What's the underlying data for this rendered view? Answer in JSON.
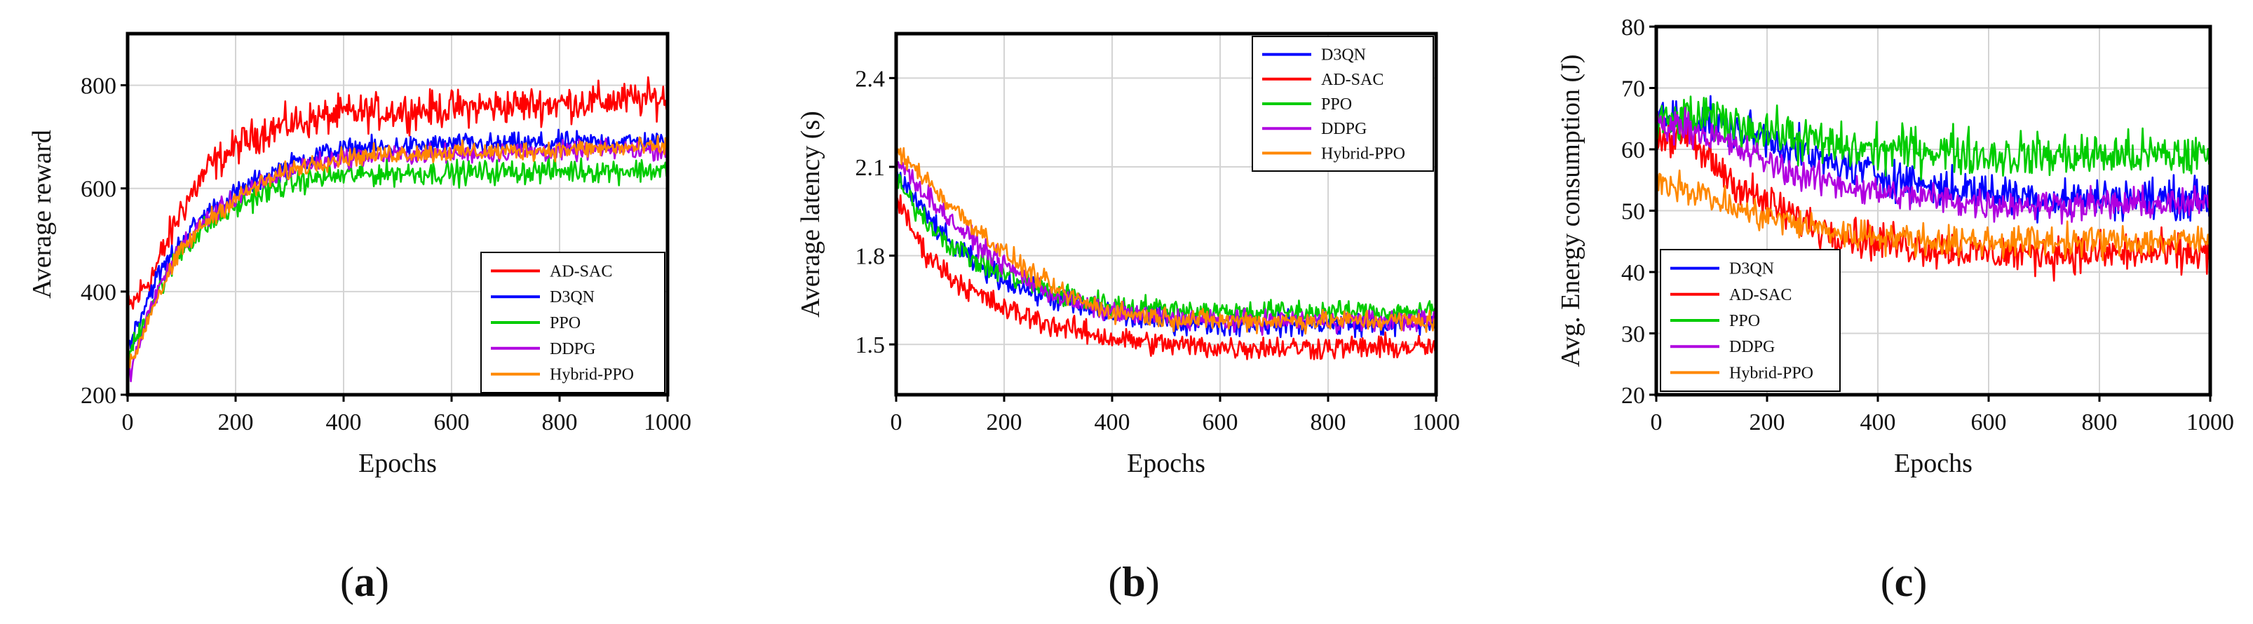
{
  "chart_data": [
    {
      "type": "line",
      "panel": "a",
      "caption_letter": "a",
      "xlabel": "Epochs",
      "ylabel": "Average reward",
      "xlim": [
        0,
        1000
      ],
      "ylim": [
        200,
        900
      ],
      "xticks": [
        0,
        200,
        400,
        600,
        800,
        1000
      ],
      "yticks": [
        200,
        400,
        600,
        800
      ],
      "grid": true,
      "legend_position": "bottom-right",
      "series": [
        {
          "name": "AD-SAC",
          "color": "#ff0000",
          "x": [
            0,
            50,
            100,
            150,
            200,
            250,
            300,
            350,
            400,
            500,
            600,
            700,
            800,
            900,
            1000
          ],
          "values": [
            360,
            440,
            560,
            640,
            680,
            710,
            725,
            735,
            745,
            750,
            755,
            760,
            765,
            770,
            775
          ],
          "noise": 30
        },
        {
          "name": "D3QN",
          "color": "#0000ff",
          "x": [
            0,
            50,
            100,
            150,
            200,
            250,
            300,
            350,
            400,
            500,
            600,
            700,
            800,
            900,
            1000
          ],
          "values": [
            290,
            420,
            500,
            555,
            590,
            620,
            645,
            665,
            675,
            680,
            685,
            685,
            688,
            690,
            690
          ],
          "noise": 18
        },
        {
          "name": "PPO",
          "color": "#00cc00",
          "x": [
            0,
            50,
            100,
            150,
            200,
            250,
            300,
            350,
            400,
            500,
            600,
            700,
            800,
            900,
            1000
          ],
          "values": [
            270,
            390,
            480,
            530,
            565,
            590,
            610,
            620,
            625,
            630,
            630,
            632,
            634,
            635,
            635
          ],
          "noise": 20
        },
        {
          "name": "DDPG",
          "color": "#b000e0",
          "x": [
            0,
            50,
            100,
            150,
            200,
            250,
            300,
            350,
            400,
            500,
            600,
            700,
            800,
            900,
            1000
          ],
          "values": [
            230,
            390,
            490,
            545,
            580,
            610,
            635,
            650,
            660,
            665,
            668,
            670,
            672,
            675,
            675
          ],
          "noise": 16
        },
        {
          "name": "Hybrid-PPO",
          "color": "#ff8800",
          "x": [
            0,
            50,
            100,
            150,
            200,
            250,
            300,
            350,
            400,
            500,
            600,
            700,
            800,
            900,
            1000
          ],
          "values": [
            240,
            380,
            480,
            540,
            580,
            610,
            635,
            650,
            660,
            668,
            670,
            672,
            675,
            678,
            680
          ],
          "noise": 16
        }
      ]
    },
    {
      "type": "line",
      "panel": "b",
      "caption_letter": "b",
      "xlabel": "Epochs",
      "ylabel": "Average latency (s)",
      "xlim": [
        0,
        1000
      ],
      "ylim": [
        1.33,
        2.55
      ],
      "xticks": [
        0,
        200,
        400,
        600,
        800,
        1000
      ],
      "yticks": [
        1.5,
        1.8,
        2.1,
        2.4
      ],
      "grid": true,
      "legend_position": "top-right",
      "series": [
        {
          "name": "D3QN",
          "color": "#0000ff",
          "x": [
            0,
            50,
            100,
            150,
            200,
            250,
            300,
            350,
            400,
            500,
            600,
            700,
            800,
            900,
            1000
          ],
          "values": [
            2.08,
            1.95,
            1.84,
            1.77,
            1.72,
            1.68,
            1.65,
            1.62,
            1.6,
            1.58,
            1.57,
            1.57,
            1.57,
            1.57,
            1.57
          ],
          "noise": 0.035
        },
        {
          "name": "AD-SAC",
          "color": "#ff0000",
          "x": [
            0,
            50,
            100,
            150,
            200,
            250,
            300,
            350,
            400,
            500,
            600,
            700,
            800,
            900,
            1000
          ],
          "values": [
            1.99,
            1.82,
            1.73,
            1.67,
            1.62,
            1.59,
            1.56,
            1.54,
            1.52,
            1.5,
            1.49,
            1.49,
            1.49,
            1.49,
            1.49
          ],
          "noise": 0.035
        },
        {
          "name": "PPO",
          "color": "#00cc00",
          "x": [
            0,
            50,
            100,
            150,
            200,
            250,
            300,
            350,
            400,
            500,
            600,
            700,
            800,
            900,
            1000
          ],
          "values": [
            2.05,
            1.93,
            1.84,
            1.78,
            1.74,
            1.7,
            1.67,
            1.65,
            1.63,
            1.62,
            1.61,
            1.61,
            1.61,
            1.61,
            1.61
          ],
          "noise": 0.035
        },
        {
          "name": "DDPG",
          "color": "#b000e0",
          "x": [
            0,
            50,
            100,
            150,
            200,
            250,
            300,
            350,
            400,
            500,
            600,
            700,
            800,
            900,
            1000
          ],
          "values": [
            2.12,
            2.02,
            1.92,
            1.84,
            1.77,
            1.71,
            1.66,
            1.63,
            1.61,
            1.59,
            1.58,
            1.58,
            1.58,
            1.58,
            1.58
          ],
          "noise": 0.03
        },
        {
          "name": "Hybrid-PPO",
          "color": "#ff8800",
          "x": [
            0,
            50,
            100,
            150,
            200,
            250,
            300,
            350,
            400,
            500,
            600,
            700,
            800,
            900,
            1000
          ],
          "values": [
            2.15,
            2.07,
            1.97,
            1.89,
            1.81,
            1.74,
            1.68,
            1.64,
            1.61,
            1.59,
            1.58,
            1.58,
            1.58,
            1.58,
            1.58
          ],
          "noise": 0.03
        }
      ]
    },
    {
      "type": "line",
      "panel": "c",
      "caption_letter": "c",
      "xlabel": "Epochs",
      "ylabel": "Avg. Energy consumption (J)",
      "xlim": [
        0,
        1000
      ],
      "ylim": [
        20,
        80
      ],
      "xticks": [
        0,
        200,
        400,
        600,
        800,
        1000
      ],
      "yticks": [
        20,
        30,
        40,
        50,
        60,
        70,
        80
      ],
      "grid": true,
      "legend_position": "bottom-left",
      "series": [
        {
          "name": "D3QN",
          "color": "#0000ff",
          "x": [
            0,
            50,
            100,
            150,
            200,
            250,
            300,
            350,
            400,
            500,
            600,
            700,
            800,
            900,
            1000
          ],
          "values": [
            65,
            65,
            64,
            63,
            62,
            60,
            58,
            57,
            56,
            54,
            53,
            52,
            52,
            52,
            52
          ],
          "noise": 2.8
        },
        {
          "name": "AD-SAC",
          "color": "#ff0000",
          "x": [
            0,
            50,
            100,
            150,
            200,
            250,
            300,
            350,
            400,
            500,
            600,
            700,
            800,
            900,
            1000
          ],
          "values": [
            62,
            62,
            58,
            54,
            51,
            49,
            47,
            46,
            45,
            44,
            43,
            43,
            43,
            43,
            43
          ],
          "noise": 2.8
        },
        {
          "name": "PPO",
          "color": "#00cc00",
          "x": [
            0,
            50,
            100,
            150,
            200,
            250,
            300,
            350,
            400,
            500,
            600,
            700,
            800,
            900,
            1000
          ],
          "values": [
            64,
            65,
            65,
            64,
            63,
            62,
            61,
            60,
            60,
            60,
            59,
            59,
            59,
            59,
            59
          ],
          "noise": 3.2
        },
        {
          "name": "DDPG",
          "color": "#b000e0",
          "x": [
            0,
            50,
            100,
            150,
            200,
            250,
            300,
            350,
            400,
            500,
            600,
            700,
            800,
            900,
            1000
          ],
          "values": [
            64,
            64,
            62,
            60,
            58,
            56,
            55,
            54,
            53,
            52,
            51,
            51,
            51,
            51,
            51
          ],
          "noise": 2.2
        },
        {
          "name": "Hybrid-PPO",
          "color": "#ff8800",
          "x": [
            0,
            50,
            100,
            150,
            200,
            250,
            300,
            350,
            400,
            500,
            600,
            700,
            800,
            900,
            1000
          ],
          "values": [
            55,
            54,
            52,
            50,
            49,
            48,
            47,
            46,
            46,
            45,
            45,
            45,
            45,
            45,
            45
          ],
          "noise": 2.2
        }
      ]
    }
  ]
}
